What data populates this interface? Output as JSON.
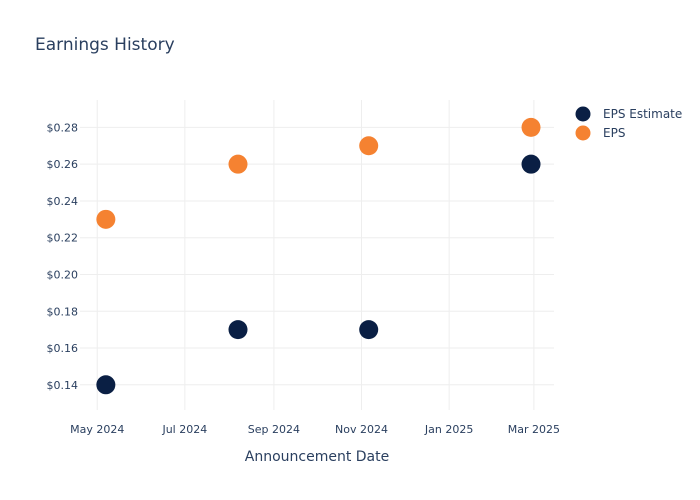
{
  "chart_data": {
    "type": "scatter",
    "title": "Earnings History",
    "xlabel": "Announcement Date",
    "ylabel": "",
    "x_ticks": [
      {
        "date": "2024-05-01",
        "label": "May 2024"
      },
      {
        "date": "2024-07-01",
        "label": "Jul 2024"
      },
      {
        "date": "2024-09-01",
        "label": "Sep 2024"
      },
      {
        "date": "2024-11-01",
        "label": "Nov 2024"
      },
      {
        "date": "2025-01-01",
        "label": "Jan 2025"
      },
      {
        "date": "2025-03-01",
        "label": "Mar 2025"
      }
    ],
    "xlim": [
      "2024-04-19",
      "2025-03-15"
    ],
    "y_ticks": [
      {
        "value": 0.14,
        "label": "$0.14"
      },
      {
        "value": 0.16,
        "label": "$0.16"
      },
      {
        "value": 0.18,
        "label": "$0.18"
      },
      {
        "value": 0.2,
        "label": "$0.20"
      },
      {
        "value": 0.22,
        "label": "$0.22"
      },
      {
        "value": 0.24,
        "label": "$0.24"
      },
      {
        "value": 0.26,
        "label": "$0.26"
      },
      {
        "value": 0.28,
        "label": "$0.28"
      }
    ],
    "ylim": [
      0.1263,
      0.2949
    ],
    "grid": true,
    "legend_position": "top-right",
    "series": [
      {
        "name": "EPS Estimate",
        "color": "#0a1f44",
        "points": [
          {
            "x": "2024-05-07",
            "y": 0.14
          },
          {
            "x": "2024-08-07",
            "y": 0.17
          },
          {
            "x": "2024-11-06",
            "y": 0.17
          },
          {
            "x": "2025-02-27",
            "y": 0.26
          }
        ]
      },
      {
        "name": "EPS",
        "color": "#f58231",
        "points": [
          {
            "x": "2024-05-07",
            "y": 0.23
          },
          {
            "x": "2024-08-07",
            "y": 0.26
          },
          {
            "x": "2024-11-06",
            "y": 0.27
          },
          {
            "x": "2025-02-27",
            "y": 0.28
          }
        ]
      }
    ]
  }
}
